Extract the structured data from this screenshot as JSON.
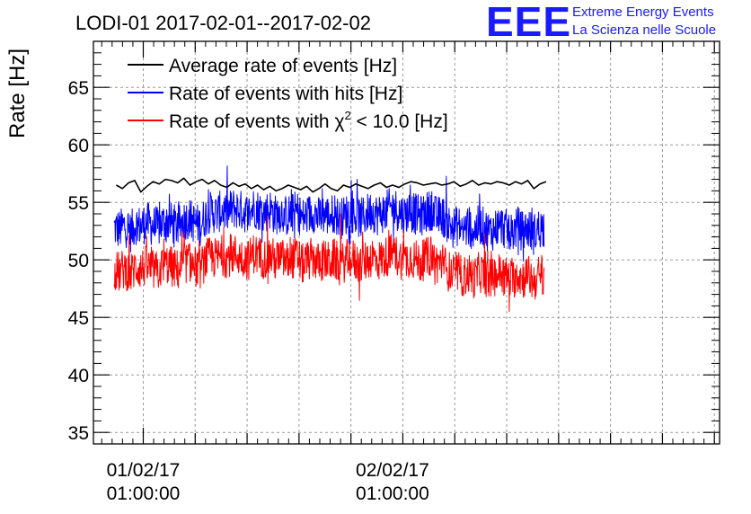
{
  "chart_data": {
    "type": "line",
    "title": "LODI-01 2017-02-01--2017-02-02",
    "ylabel": "Rate [Hz]",
    "xlabel": "",
    "ylim": [
      34,
      69
    ],
    "yticks": [
      35,
      40,
      45,
      50,
      55,
      60,
      65
    ],
    "xlim_hours": [
      -4.8,
      55.5
    ],
    "xticks": [
      {
        "hour": 0,
        "date": "01/02/17",
        "time": "01:00:00"
      },
      {
        "hour": 24,
        "date": "02/02/17",
        "time": "01:00:00"
      }
    ],
    "grid": true,
    "legend_position": "top-left",
    "series": [
      {
        "name": "Average rate of events [Hz]",
        "color": "#000000",
        "x_start": -2.6,
        "x_end": 38.8,
        "values": [
          56.5,
          56.2,
          56.7,
          56.9,
          55.9,
          56.4,
          56.8,
          56.6,
          57.0,
          56.9,
          56.7,
          57.1,
          56.5,
          56.8,
          57.0,
          56.6,
          56.9,
          56.5,
          56.3,
          56.7,
          56.4,
          56.6,
          56.2,
          56.5,
          56.1,
          56.4,
          56.0,
          56.2,
          56.5,
          56.3,
          56.1,
          56.4,
          55.9,
          56.2,
          56.6,
          56.2,
          56.0,
          56.5,
          56.3,
          56.6,
          56.4,
          56.2,
          56.5,
          56.7,
          56.3,
          56.5,
          56.3,
          56.6,
          56.8,
          56.7,
          56.5,
          56.6,
          56.7,
          56.5,
          56.6,
          56.8,
          56.4,
          56.6,
          56.9,
          56.5,
          56.7,
          56.6,
          56.8,
          56.7,
          56.5,
          56.8,
          56.6,
          56.9,
          56.2,
          56.6,
          56.8
        ]
      },
      {
        "name": "Rate of events with hits [Hz]",
        "color": "#0000ff",
        "x_start": -2.8,
        "x_end": 38.6,
        "values": [
          52.8,
          52.6,
          53.0,
          52.4,
          53.1,
          52.9,
          53.3,
          53.0,
          52.8,
          53.2,
          53.4,
          53.1,
          52.9,
          53.5,
          53.6,
          53.2,
          53.0,
          53.8,
          54.2,
          54.0,
          54.3,
          54.1,
          54.5,
          54.4,
          54.2,
          54.0,
          54.6,
          54.3,
          54.1,
          54.4,
          53.9,
          54.2,
          53.8,
          54.0,
          54.3,
          53.6,
          53.9,
          54.2,
          53.7,
          54.0,
          53.8,
          54.1,
          53.5,
          53.9,
          54.2,
          53.8,
          53.6,
          54.0,
          54.3,
          53.9,
          54.1,
          54.4,
          54.6,
          54.2,
          53.9,
          54.3,
          54.0,
          53.8,
          54.1,
          54.4,
          53.7,
          53.9,
          53.2,
          52.8,
          53.0,
          52.6,
          52.9,
          52.5,
          53.1,
          52.7,
          52.4,
          52.8,
          53.0,
          52.6,
          52.3,
          52.9,
          52.5,
          52.8,
          52.2,
          52.7,
          52.9
        ]
      },
      {
        "name": "Rate of events with χ2 < 10.0 [Hz]",
        "color": "#ff0000",
        "x_start": -2.8,
        "x_end": 38.6,
        "values": [
          49.1,
          48.9,
          49.3,
          48.7,
          49.4,
          49.2,
          49.5,
          49.1,
          49.0,
          49.4,
          49.6,
          49.3,
          49.1,
          49.7,
          49.8,
          49.4,
          49.2,
          50.0,
          50.3,
          50.1,
          50.4,
          50.2,
          50.5,
          50.4,
          50.2,
          50.0,
          50.6,
          50.3,
          50.1,
          50.4,
          49.9,
          50.2,
          49.8,
          50.0,
          50.3,
          49.6,
          49.9,
          50.2,
          49.7,
          50.0,
          49.8,
          50.1,
          49.5,
          49.9,
          50.2,
          49.8,
          49.6,
          50.0,
          50.3,
          49.9,
          50.1,
          50.4,
          50.6,
          50.2,
          49.9,
          50.3,
          50.0,
          49.8,
          50.1,
          50.4,
          49.7,
          49.9,
          49.1,
          48.7,
          48.9,
          48.5,
          48.8,
          48.4,
          49.0,
          48.6,
          48.3,
          48.7,
          48.9,
          48.5,
          48.2,
          48.8,
          48.4,
          48.7,
          48.1,
          48.6,
          48.8
        ]
      }
    ]
  },
  "legend": {
    "entries": [
      {
        "label": "Average rate of events [Hz]",
        "color": "#000000"
      },
      {
        "label": "Rate of events with hits [Hz]",
        "color": "#0000ff"
      },
      {
        "label_before": "Rate of events with ",
        "symbol": "χ",
        "superscript": "2",
        "label_after": " < 10.0 [Hz]",
        "color": "#ff0000"
      }
    ]
  },
  "logo": {
    "letters": "EEE",
    "line1": "Extreme Energy Events",
    "line2": "La Scienza nelle Scuole"
  }
}
